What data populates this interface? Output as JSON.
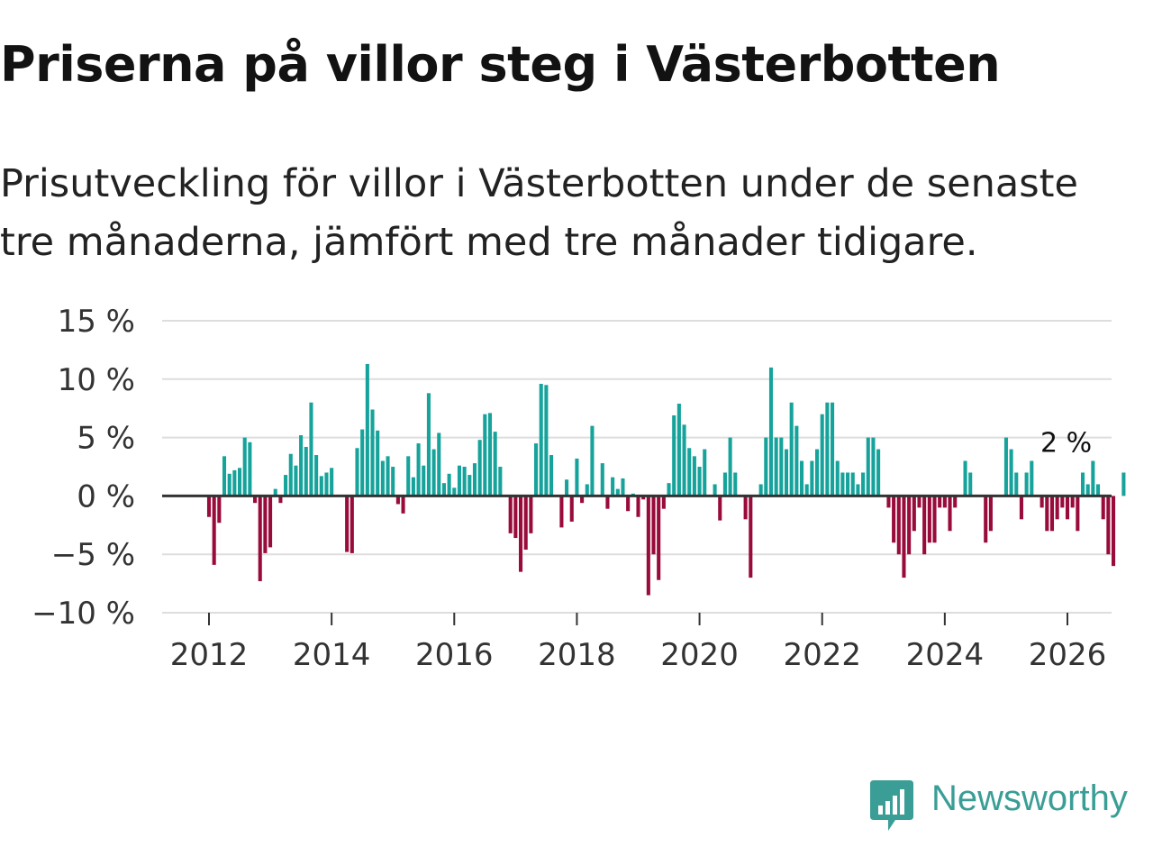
{
  "header": {
    "title": "Priserna på villor steg i Västerbotten",
    "subtitle": "Prisutveckling för villor i Västerbotten under de senaste tre månaderna, jämfört med tre månader tidigare."
  },
  "brand": {
    "name": "Newsworthy"
  },
  "colors": {
    "positive": "#16a39b",
    "negative": "#980b3a",
    "grid": "#dddddd",
    "zero_line": "#333333",
    "brand": "#3a9e96"
  },
  "chart_data": {
    "type": "bar",
    "title": "Priserna på villor steg i Västerbotten",
    "xlabel": "",
    "ylabel": "",
    "ylim": [
      -10,
      15
    ],
    "yticks": [
      15,
      10,
      5,
      0,
      -5,
      -10
    ],
    "ytick_labels": [
      "15 %",
      "10 %",
      "5 %",
      "0 %",
      "−5 %",
      "−10 %"
    ],
    "xticks": [
      2012,
      2014,
      2016,
      2018,
      2020,
      2022,
      2024,
      2026
    ],
    "xtick_labels": [
      "2012",
      "2014",
      "2016",
      "2018",
      "2020",
      "2022",
      "2024",
      "2026"
    ],
    "start_year": 2012,
    "start_month": 1,
    "frequency": "monthly",
    "last_value_label": "2 %",
    "values": [
      -1.8,
      -5.9,
      -2.3,
      3.4,
      1.9,
      2.2,
      2.4,
      5.0,
      4.6,
      -0.6,
      -7.3,
      -4.9,
      -4.4,
      0.6,
      -0.6,
      1.8,
      3.6,
      2.6,
      5.2,
      4.2,
      8.0,
      3.5,
      1.7,
      2.0,
      2.4,
      0.0,
      0.0,
      -4.8,
      -4.9,
      4.1,
      5.7,
      11.3,
      7.4,
      5.6,
      3.0,
      3.4,
      2.5,
      -0.7,
      -1.5,
      3.4,
      1.6,
      4.5,
      2.6,
      8.8,
      4.0,
      5.4,
      1.1,
      1.9,
      0.7,
      2.6,
      2.5,
      1.8,
      2.8,
      4.8,
      7.0,
      7.1,
      5.5,
      2.5,
      0.0,
      -3.2,
      -3.6,
      -6.5,
      -4.6,
      -3.2,
      4.5,
      9.6,
      9.5,
      3.5,
      0.0,
      -2.7,
      1.4,
      -2.2,
      3.2,
      -0.6,
      1.0,
      6.0,
      0.0,
      2.8,
      -1.1,
      1.6,
      0.6,
      1.5,
      -1.3,
      0.2,
      -1.8,
      -0.3,
      -8.5,
      -5.0,
      -7.2,
      -1.1,
      1.1,
      6.9,
      7.9,
      6.1,
      4.1,
      3.4,
      2.5,
      4.0,
      0.0,
      1.0,
      -2.1,
      2.0,
      5.0,
      2.0,
      0.0,
      -2.0,
      -7.0,
      0.0,
      1.0,
      5.0,
      11.0,
      5.0,
      5.0,
      4.0,
      8.0,
      6.0,
      3.0,
      1.0,
      3.0,
      4.0,
      7.0,
      8.0,
      8.0,
      3.0,
      2.0,
      2.0,
      2.0,
      1.0,
      2.0,
      5.0,
      5.0,
      4.0,
      0.0,
      -1.0,
      -4.0,
      -5.0,
      -7.0,
      -5.0,
      -3.0,
      -1.0,
      -5.0,
      -4.0,
      -4.0,
      -1.0,
      -1.0,
      -3.0,
      -1.0,
      0.0,
      3.0,
      2.0,
      0.0,
      0.0,
      -4.0,
      -3.0,
      0.0,
      0.0,
      5.0,
      4.0,
      2.0,
      -2.0,
      2.0,
      3.0,
      0.0,
      -1.0,
      -3.0,
      -3.0,
      -2.0,
      -1.0,
      -2.0,
      -1.0,
      -3.0,
      2.0,
      1.0,
      3.0,
      1.0,
      -2.0,
      -5.0,
      -6.0,
      0.0,
      2.0
    ]
  }
}
